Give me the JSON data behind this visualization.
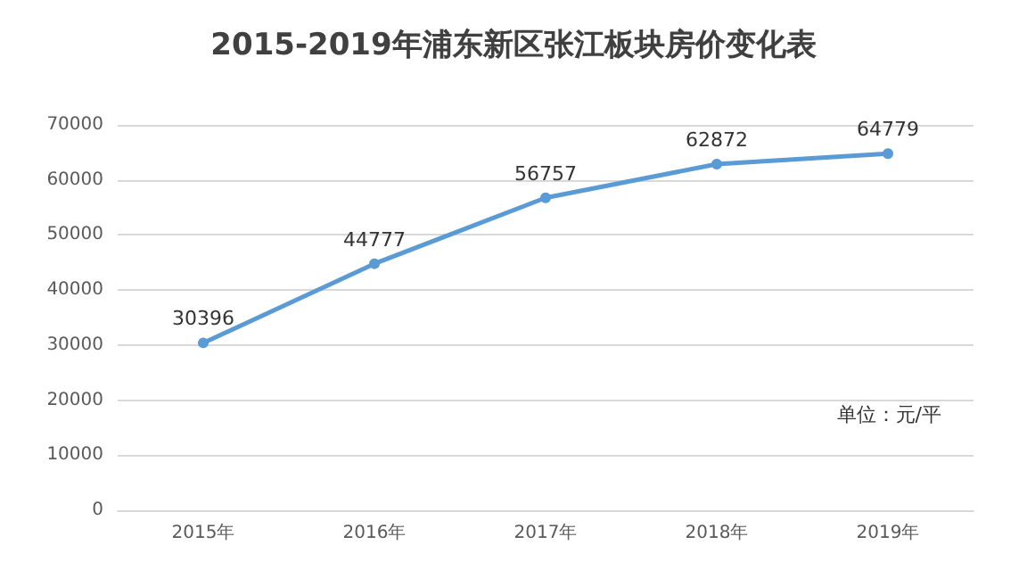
{
  "chart_data": {
    "type": "line",
    "title": "2015-2019年浦东新区张江板块房价变化表",
    "categories": [
      "2015年",
      "2016年",
      "2017年",
      "2018年",
      "2019年"
    ],
    "series": [
      {
        "color": "#5b9bd5",
        "values": [
          30396,
          44777,
          56757,
          62872,
          64779
        ]
      }
    ],
    "ylim": [
      0,
      70000
    ],
    "yticks": [
      0,
      10000,
      20000,
      30000,
      40000,
      50000,
      60000,
      70000
    ],
    "grid": "y",
    "marker": "circle",
    "line_style": "solid",
    "data_labels": true,
    "annotations": [
      "单位：元/平"
    ]
  }
}
